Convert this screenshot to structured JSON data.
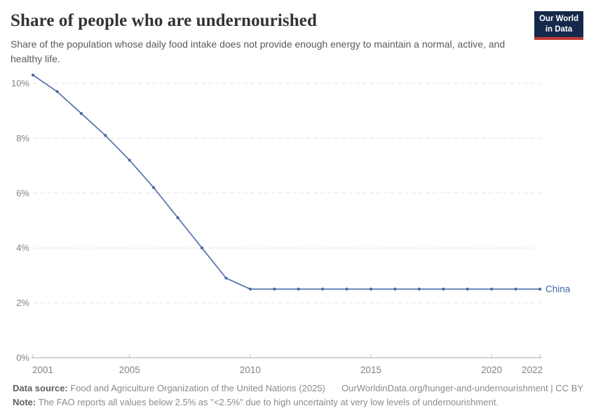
{
  "header": {
    "title": "Share of people who are undernourished",
    "subtitle": "Share of the population whose daily food intake does not provide enough energy to maintain a normal, active, and healthy life.",
    "logo_line1": "Our World",
    "logo_line2": "in Data",
    "logo_bg_color": "#15294b",
    "logo_accent_color": "#c13a34"
  },
  "chart_data": {
    "type": "line",
    "title": "Share of people who are undernourished",
    "xlabel": "",
    "ylabel": "",
    "x_range": [
      2001,
      2022
    ],
    "ylim": [
      0,
      10.5
    ],
    "grid": "horizontal-dashed",
    "legend": "inline-end-label",
    "series": [
      {
        "name": "China",
        "x": [
          2001,
          2002,
          2003,
          2004,
          2005,
          2006,
          2007,
          2008,
          2009,
          2010,
          2011,
          2012,
          2013,
          2014,
          2015,
          2016,
          2017,
          2018,
          2019,
          2020,
          2021,
          2022
        ],
        "values": [
          10.3,
          9.7,
          8.9,
          8.1,
          7.2,
          6.2,
          5.1,
          4.0,
          2.9,
          2.5,
          2.5,
          2.5,
          2.5,
          2.5,
          2.5,
          2.5,
          2.5,
          2.5,
          2.5,
          2.5,
          2.5,
          2.5
        ],
        "line_color": "#5b79ae",
        "marker_color": "#4a68a1",
        "label_color": "#3e68a6"
      }
    ],
    "x_ticks": [
      {
        "year": 2001,
        "label": "2001"
      },
      {
        "year": 2005,
        "label": "2005"
      },
      {
        "year": 2010,
        "label": "2010"
      },
      {
        "year": 2015,
        "label": "2015"
      },
      {
        "year": 2020,
        "label": "2020"
      },
      {
        "year": 2022,
        "label": "2022"
      }
    ],
    "y_ticks": [
      {
        "value": 0,
        "label": "0%"
      },
      {
        "value": 2,
        "label": "2%"
      },
      {
        "value": 4,
        "label": "4%"
      },
      {
        "value": 6,
        "label": "6%"
      },
      {
        "value": 8,
        "label": "8%"
      },
      {
        "value": 10,
        "label": "10%"
      }
    ]
  },
  "footer": {
    "source_label": "Data source:",
    "source_text": " Food and Agriculture Organization of the United Nations (2025)",
    "url": "OurWorldinData.org/hunger-and-undernourishment",
    "separator": " | ",
    "license": "CC BY",
    "note_label": "Note:",
    "note_text": " The FAO reports all values below 2.5% as \"<2.5%\" due to high uncertainty at very low levels of undernourishment."
  }
}
